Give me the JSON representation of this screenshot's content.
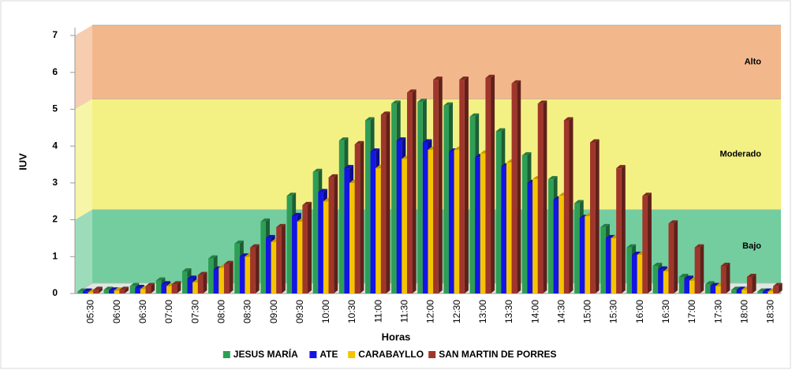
{
  "chart_data": {
    "type": "bar",
    "xlabel": "Horas",
    "ylabel": "IUV",
    "categories": [
      "05:30",
      "06:00",
      "06:30",
      "07:00",
      "07:30",
      "08:00",
      "08:30",
      "09:00",
      "09:30",
      "10:00",
      "10:30",
      "11:00",
      "11:30",
      "12:00",
      "12:30",
      "13:00",
      "13:30",
      "14:00",
      "14:30",
      "15:00",
      "15:30",
      "16:00",
      "16:30",
      "17:00",
      "17:30",
      "18:00",
      "18:30"
    ],
    "series": [
      {
        "name": "JESUS MARÍA",
        "color": "#2e9e57",
        "values": [
          0.05,
          0.1,
          0.2,
          0.35,
          0.6,
          0.95,
          1.35,
          1.95,
          2.65,
          3.3,
          4.15,
          4.7,
          5.15,
          5.2,
          5.1,
          4.8,
          4.4,
          3.75,
          3.1,
          2.45,
          1.8,
          1.25,
          0.75,
          0.45,
          0.25,
          0.1,
          0.05
        ]
      },
      {
        "name": "ATE",
        "color": "#1414e6",
        "values": [
          0.05,
          0.08,
          0.15,
          0.25,
          0.4,
          0.65,
          1.0,
          1.5,
          2.1,
          2.75,
          3.4,
          3.85,
          4.15,
          4.1,
          3.85,
          3.7,
          3.45,
          3.0,
          2.55,
          2.05,
          1.5,
          1.05,
          0.65,
          0.4,
          0.2,
          0.1,
          0.05
        ]
      },
      {
        "name": "CARABAYLLO",
        "color": "#f5c400",
        "values": [
          0.03,
          0.08,
          0.12,
          0.2,
          0.3,
          0.7,
          1.0,
          1.4,
          1.95,
          2.5,
          3.0,
          3.4,
          3.65,
          3.9,
          3.9,
          3.8,
          3.55,
          3.1,
          2.65,
          2.1,
          1.5,
          1.05,
          0.6,
          0.35,
          0.2,
          0.1,
          0.05
        ]
      },
      {
        "name": "SAN MARTIN DE PORRES",
        "color": "#a0362b",
        "values": [
          0.1,
          0.1,
          0.2,
          0.25,
          0.5,
          0.8,
          1.25,
          1.8,
          2.4,
          3.15,
          4.05,
          4.85,
          5.45,
          5.8,
          5.8,
          5.85,
          5.7,
          5.15,
          4.7,
          4.1,
          3.4,
          2.65,
          1.9,
          1.25,
          0.75,
          0.45,
          0.2
        ]
      }
    ],
    "bands": [
      {
        "label": "Bajo",
        "from": 0,
        "to": 2,
        "color": "#5cc48e"
      },
      {
        "label": "Moderado",
        "from": 2,
        "to": 5,
        "color": "#f2ef6e"
      },
      {
        "label": "Alto",
        "from": 5,
        "to": 7,
        "color": "#f0ac78"
      }
    ],
    "ylim": [
      0,
      7
    ],
    "yticks": [
      0,
      1,
      2,
      3,
      4,
      5,
      6,
      7
    ],
    "legend": "bottom"
  }
}
